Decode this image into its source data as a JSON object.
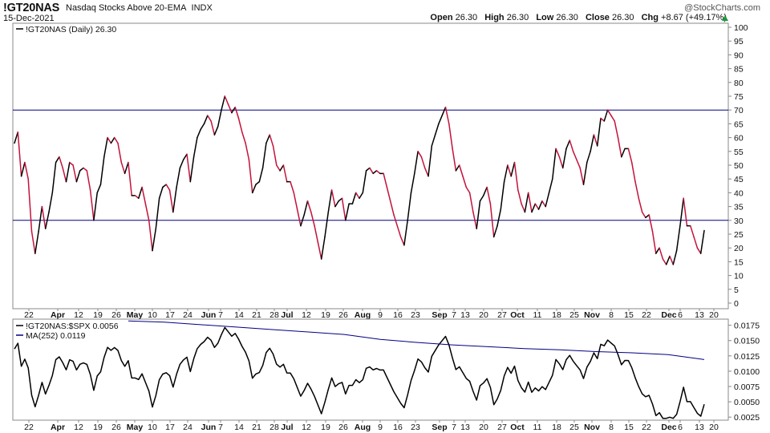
{
  "header": {
    "ticker": "!GT20NAS",
    "description": "Nasdaq Stocks Above 20-EMA",
    "exchange": "INDX",
    "date": "15-Dec-2021",
    "watermark": "@StockCharts.com",
    "open_label": "Open",
    "open": "26.30",
    "high_label": "High",
    "high": "26.30",
    "low_label": "Low",
    "low": "26.30",
    "close_label": "Close",
    "close": "26.30",
    "chg_label": "Chg",
    "chg": "+8.67 (+49.17%)",
    "chg_color": "#1a9a3a"
  },
  "chart_data": [
    {
      "type": "line",
      "legend": "!GT20NAS (Daily) 26.30",
      "ylim": [
        0,
        100
      ],
      "yticks": [
        0,
        5,
        10,
        15,
        20,
        25,
        30,
        35,
        40,
        45,
        50,
        55,
        60,
        65,
        70,
        75,
        80,
        85,
        90,
        95,
        100
      ],
      "hlines": [
        70,
        30
      ],
      "colors": {
        "up": "#000000",
        "down": "#c4123a",
        "hline": "#000080"
      },
      "grid": false,
      "x_ticks": [
        "22",
        "Apr",
        "12",
        "19",
        "26",
        "May",
        "10",
        "17",
        "24",
        "Jun",
        "7",
        "14",
        "21",
        "28",
        "Jul",
        "12",
        "19",
        "26",
        "Aug",
        "9",
        "16",
        "23",
        "Sep",
        "7",
        "13",
        "20",
        "27",
        "Oct",
        "11",
        "18",
        "25",
        "Nov",
        "8",
        "15",
        "22",
        "Dec",
        "6",
        "13",
        "20"
      ],
      "values": [
        58,
        62,
        46,
        51,
        45,
        26,
        18,
        26,
        35,
        27,
        33,
        40,
        51,
        53,
        49,
        44,
        51,
        50,
        44,
        48,
        49,
        48,
        41,
        30,
        40,
        43,
        53,
        60,
        58,
        60,
        58,
        51,
        47,
        51,
        39,
        39,
        38,
        42,
        36,
        30,
        19,
        27,
        38,
        42,
        43,
        41,
        33,
        42,
        49,
        52,
        54,
        44,
        53,
        60,
        63,
        65,
        68,
        66,
        61,
        64,
        70,
        75,
        72,
        69,
        71,
        67,
        62,
        58,
        52,
        40,
        43,
        44,
        49,
        58,
        61,
        57,
        50,
        48,
        50,
        44,
        44,
        40,
        34,
        28,
        32,
        37,
        33,
        28,
        22,
        16,
        24,
        33,
        41,
        35,
        37,
        38,
        30,
        36,
        36,
        40,
        38,
        40,
        48,
        49,
        47,
        48,
        47,
        47,
        42,
        37,
        32,
        28,
        24,
        21,
        30,
        40,
        47,
        55,
        53,
        49,
        46,
        57,
        61,
        65,
        68,
        71,
        65,
        56,
        48,
        50,
        46,
        42,
        40,
        33,
        27,
        37,
        39,
        42,
        36,
        24,
        28,
        34,
        44,
        50,
        46,
        51,
        41,
        36,
        33,
        40,
        33,
        36,
        34,
        37,
        35,
        40,
        45,
        56,
        53,
        49,
        56,
        59,
        55,
        52,
        49,
        43,
        51,
        55,
        61,
        57,
        67,
        66,
        70,
        68,
        66,
        60,
        53,
        56,
        56,
        51,
        44,
        38,
        33,
        31,
        32,
        26,
        18,
        20,
        16,
        14,
        17,
        14,
        19,
        28,
        38,
        28,
        28,
        24,
        20,
        18,
        26.3
      ]
    },
    {
      "type": "line",
      "legend_series": "!GT20NAS:$SPX 0.0056",
      "legend_ma": "MA(252) 0.0119",
      "ylim": [
        0.002,
        0.0185
      ],
      "yticks": [
        0.0025,
        0.005,
        0.0075,
        0.01,
        0.0125,
        0.015,
        0.0175
      ],
      "ytick_labels": [
        "0.0025",
        "0.0050",
        "0.0075",
        "0.0100",
        "0.0125",
        "0.0150",
        "0.0175"
      ],
      "grid": false,
      "colors": {
        "series": "#000000",
        "ma": "#000080"
      },
      "x_ticks": [
        "22",
        "Apr",
        "12",
        "19",
        "26",
        "May",
        "10",
        "17",
        "24",
        "Jun",
        "7",
        "14",
        "21",
        "28",
        "Jul",
        "12",
        "19",
        "26",
        "Aug",
        "9",
        "16",
        "23",
        "Sep",
        "7",
        "13",
        "20",
        "27",
        "Oct",
        "11",
        "18",
        "25",
        "Nov",
        "8",
        "15",
        "22",
        "Dec",
        "6",
        "13",
        "20"
      ],
      "ma_values": [
        0.0182,
        0.018,
        0.0176,
        0.0172,
        0.0168,
        0.0164,
        0.016,
        0.0152,
        0.0147,
        0.0143,
        0.014,
        0.0137,
        0.0135,
        0.0132,
        0.013,
        0.0127,
        0.0119
      ]
    }
  ]
}
